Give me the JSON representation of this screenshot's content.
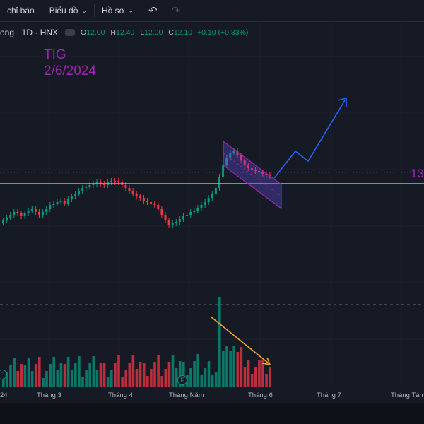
{
  "toolbar": {
    "indicators_label": "chỉ báo",
    "chart_label": "Biểu đồ",
    "profile_label": "Hồ sơ"
  },
  "legend": {
    "symbol_text": "ong · 1D · HNX",
    "open_key": "O",
    "open": "12.00",
    "high_key": "H",
    "high": "12.40",
    "low_key": "L",
    "low": "12.00",
    "close_key": "C",
    "close": "12.10",
    "change": "+0.10 (+0.83%)"
  },
  "annotation": {
    "line1": "TIG",
    "line2": "2/6/2024",
    "price_tag": "13"
  },
  "events": {
    "badge": "F"
  },
  "xaxis": {
    "labels": [
      "24",
      "Tháng 3",
      "Tháng 4",
      "Tháng Năm",
      "Tháng 6",
      "Tháng 7",
      "Tháng Tám"
    ]
  },
  "colors": {
    "up": "#089981",
    "down": "#f23645",
    "support": "#f5a623",
    "channel": "#9c27b0",
    "forecast": "#2962ff"
  }
}
